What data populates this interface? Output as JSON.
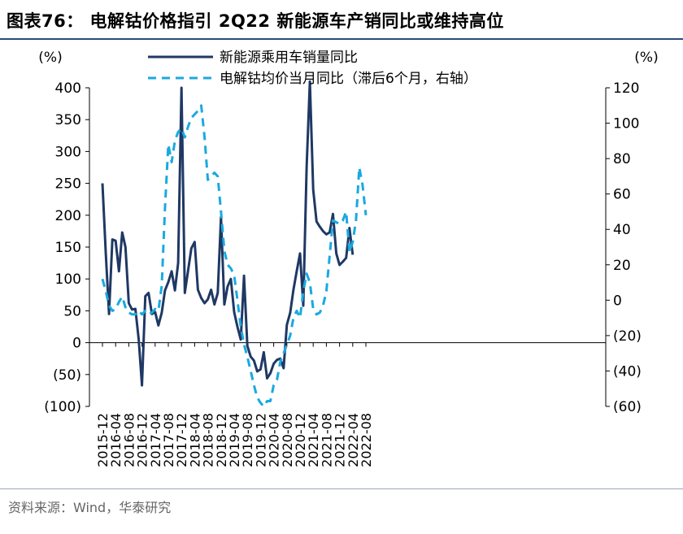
{
  "title": "图表76： 电解钴价格指引 2Q22 新能源车产销同比或维持高位",
  "source": "资料来源：Wind，华泰研究",
  "colors": {
    "sales": "#1f3864",
    "price": "#1aa9e0",
    "axis": "#000000",
    "title_rule": "#2b4a7a"
  },
  "chart_data": {
    "type": "line",
    "left_unit": "(%)",
    "right_unit": "(%)",
    "left_ylim": [
      -100,
      400
    ],
    "right_ylim": [
      -60,
      120
    ],
    "left_ticks": [
      {
        "v": 400,
        "label": "400"
      },
      {
        "v": 350,
        "label": "350"
      },
      {
        "v": 300,
        "label": "300"
      },
      {
        "v": 250,
        "label": "250"
      },
      {
        "v": 200,
        "label": "200"
      },
      {
        "v": 150,
        "label": "150"
      },
      {
        "v": 100,
        "label": "100"
      },
      {
        "v": 50,
        "label": "50"
      },
      {
        "v": 0,
        "label": "0"
      },
      {
        "v": -50,
        "label": "(50)"
      },
      {
        "v": -100,
        "label": "(100)"
      }
    ],
    "right_ticks": [
      {
        "v": 120,
        "label": "120"
      },
      {
        "v": 100,
        "label": "100"
      },
      {
        "v": 80,
        "label": "80"
      },
      {
        "v": 60,
        "label": "60"
      },
      {
        "v": 40,
        "label": "40"
      },
      {
        "v": 20,
        "label": "20"
      },
      {
        "v": 0,
        "label": "0"
      },
      {
        "v": -20,
        "label": "(20)"
      },
      {
        "v": -40,
        "label": "(40)"
      },
      {
        "v": -60,
        "label": "(60)"
      }
    ],
    "x_tick_labels": [
      "2015-12",
      "2016-04",
      "2016-08",
      "2016-12",
      "2017-04",
      "2017-08",
      "2017-12",
      "2018-04",
      "2018-08",
      "2018-12",
      "2019-04",
      "2019-08",
      "2019-12",
      "2020-04",
      "2020-08",
      "2020-12",
      "2021-04",
      "2021-08",
      "2021-12",
      "2022-04",
      "2022-08"
    ],
    "months": [
      "2015-12",
      "2016-01",
      "2016-02",
      "2016-03",
      "2016-04",
      "2016-05",
      "2016-06",
      "2016-07",
      "2016-08",
      "2016-09",
      "2016-10",
      "2016-11",
      "2016-12",
      "2017-01",
      "2017-02",
      "2017-03",
      "2017-04",
      "2017-05",
      "2017-06",
      "2017-07",
      "2017-08",
      "2017-09",
      "2017-10",
      "2017-11",
      "2017-12",
      "2018-01",
      "2018-02",
      "2018-03",
      "2018-04",
      "2018-05",
      "2018-06",
      "2018-07",
      "2018-08",
      "2018-09",
      "2018-10",
      "2018-11",
      "2018-12",
      "2019-01",
      "2019-02",
      "2019-03",
      "2019-04",
      "2019-05",
      "2019-06",
      "2019-07",
      "2019-08",
      "2019-09",
      "2019-10",
      "2019-11",
      "2019-12",
      "2020-01",
      "2020-02",
      "2020-03",
      "2020-04",
      "2020-05",
      "2020-06",
      "2020-07",
      "2020-08",
      "2020-09",
      "2020-10",
      "2020-11",
      "2020-12",
      "2021-01",
      "2021-02",
      "2021-03",
      "2021-04",
      "2021-05",
      "2021-06",
      "2021-07",
      "2021-08",
      "2021-09",
      "2021-10",
      "2021-11",
      "2021-12",
      "2022-01",
      "2022-02",
      "2022-03",
      "2022-04",
      "2022-05",
      "2022-06",
      "2022-07",
      "2022-08"
    ],
    "series": [
      {
        "name": "新能源乘用车销量同比",
        "axis": "left",
        "style": "solid",
        "values": [
          250,
          140,
          45,
          162,
          160,
          112,
          173,
          150,
          62,
          52,
          53,
          5,
          -67,
          73,
          78,
          45,
          48,
          27,
          47,
          82,
          95,
          112,
          82,
          125,
          400,
          78,
          113,
          148,
          158,
          83,
          70,
          62,
          68,
          83,
          60,
          78,
          197,
          60,
          88,
          100,
          48,
          25,
          5,
          105,
          -5,
          -22,
          -28,
          -45,
          -42,
          -15,
          -56,
          -48,
          -33,
          -27,
          -25,
          -40,
          28,
          47,
          83,
          112,
          140,
          58,
          275,
          410,
          240,
          190,
          182,
          175,
          170,
          173,
          202,
          140,
          122,
          127,
          133,
          180,
          138,
          null,
          null,
          null,
          null
        ]
      },
      {
        "name": "电解钴均价当月同比（滞后6个月，右轴）",
        "axis": "right",
        "style": "dashed",
        "values": [
          12,
          5,
          -3,
          -6,
          -5,
          -1,
          2,
          -4,
          -7,
          -8,
          -8,
          -6,
          -8,
          -6,
          -8,
          -7,
          -5,
          -6,
          8,
          52,
          88,
          78,
          90,
          95,
          97,
          92,
          98,
          103,
          105,
          107,
          110,
          92,
          68,
          70,
          72,
          70,
          50,
          28,
          20,
          18,
          14,
          0,
          -15,
          -25,
          -32,
          -40,
          -48,
          -55,
          -58,
          -60,
          -57,
          -57,
          -48,
          -45,
          -35,
          -30,
          -25,
          -20,
          -10,
          -6,
          -10,
          5,
          15,
          10,
          -5,
          -8,
          -7,
          -3,
          5,
          25,
          45,
          44,
          43,
          45,
          50,
          27,
          33,
          45,
          75,
          65,
          48
        ]
      }
    ]
  }
}
